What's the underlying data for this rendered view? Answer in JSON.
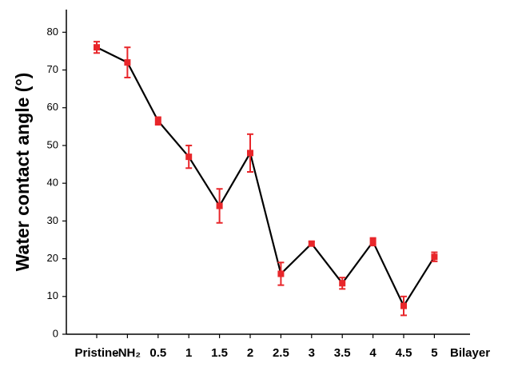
{
  "chart_data": {
    "type": "line",
    "y_label": "Water contact angle (°)",
    "x_label": "Bilayer",
    "categories": [
      "Pristine",
      "-NH₂",
      "0.5",
      "1",
      "1.5",
      "2",
      "2.5",
      "3",
      "3.5",
      "4",
      "4.5",
      "5"
    ],
    "values": [
      76,
      72,
      56.5,
      47,
      34,
      48,
      16,
      24,
      13.5,
      24.5,
      7.5,
      20.5
    ],
    "errors": [
      1.5,
      4,
      1,
      3,
      4.5,
      5,
      3,
      0.5,
      1.5,
      1,
      2.5,
      1.2
    ],
    "color": "#e8262a",
    "line_color": "#000000",
    "ylim": [
      0,
      86
    ],
    "yticks": [
      0,
      10,
      20,
      30,
      40,
      50,
      60,
      70,
      80
    ],
    "grid": false
  }
}
